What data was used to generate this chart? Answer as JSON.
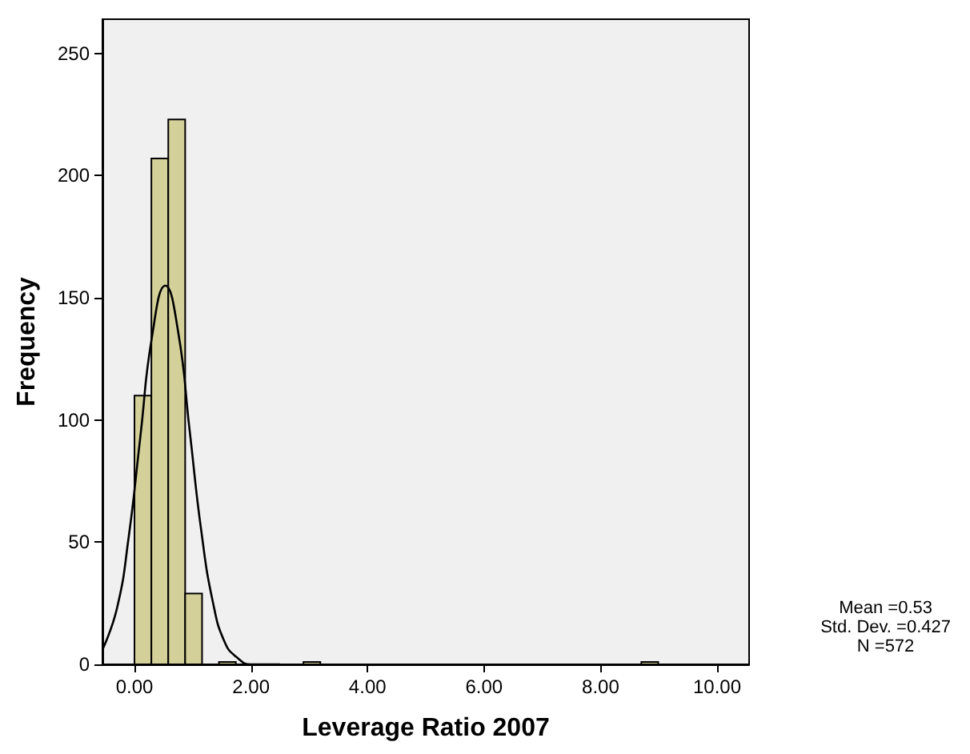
{
  "chart_data": {
    "type": "histogram",
    "xlabel": "Leverage Ratio 2007",
    "ylabel": "Frequency",
    "bins": [
      0,
      0.29,
      0.58,
      0.87,
      1.16,
      1.45,
      1.74,
      2.03,
      2.32,
      2.61,
      2.9,
      3.19,
      3.48,
      3.77,
      4.06,
      4.35,
      4.64,
      4.93,
      5.22,
      5.51,
      5.8,
      6.09,
      6.38,
      6.67,
      6.96,
      7.25,
      7.54,
      7.83,
      8.12,
      8.41,
      8.7,
      8.99
    ],
    "values": [
      110,
      207,
      223,
      29,
      0,
      1,
      0,
      0,
      0,
      0,
      1,
      0,
      0,
      0,
      0,
      0,
      0,
      0,
      0,
      0,
      0,
      0,
      0,
      0,
      0,
      0,
      0,
      0,
      0,
      0,
      1
    ],
    "color": "#d4d09a",
    "series": [
      {
        "type": "line",
        "color": "#000000",
        "x": [
          -0.55,
          -0.3,
          -0.1,
          0.1,
          0.3,
          0.53,
          0.75,
          0.95,
          1.15,
          1.35,
          1.55,
          1.75,
          2.0,
          2.5
        ],
        "values": [
          6,
          23,
          52,
          93,
          134,
          155,
          136,
          95,
          54,
          25,
          9,
          3,
          0,
          0
        ]
      }
    ],
    "xlim": [
      -0.55,
      10.55
    ],
    "xticks": [
      {
        "value": 0,
        "label": "0.00"
      },
      {
        "value": 2,
        "label": "2.00"
      },
      {
        "value": 4,
        "label": "4.00"
      },
      {
        "value": 6,
        "label": "6.00"
      },
      {
        "value": 8,
        "label": "8.00"
      },
      {
        "value": 10,
        "label": "10.00"
      }
    ],
    "ylim": [
      0,
      264
    ],
    "yticks": [
      0,
      50,
      100,
      150,
      200,
      250
    ],
    "grid": false,
    "marker": "none",
    "annotations": [
      "Mean =0.53\nStd. Dev. =0.427\nN =572"
    ]
  }
}
